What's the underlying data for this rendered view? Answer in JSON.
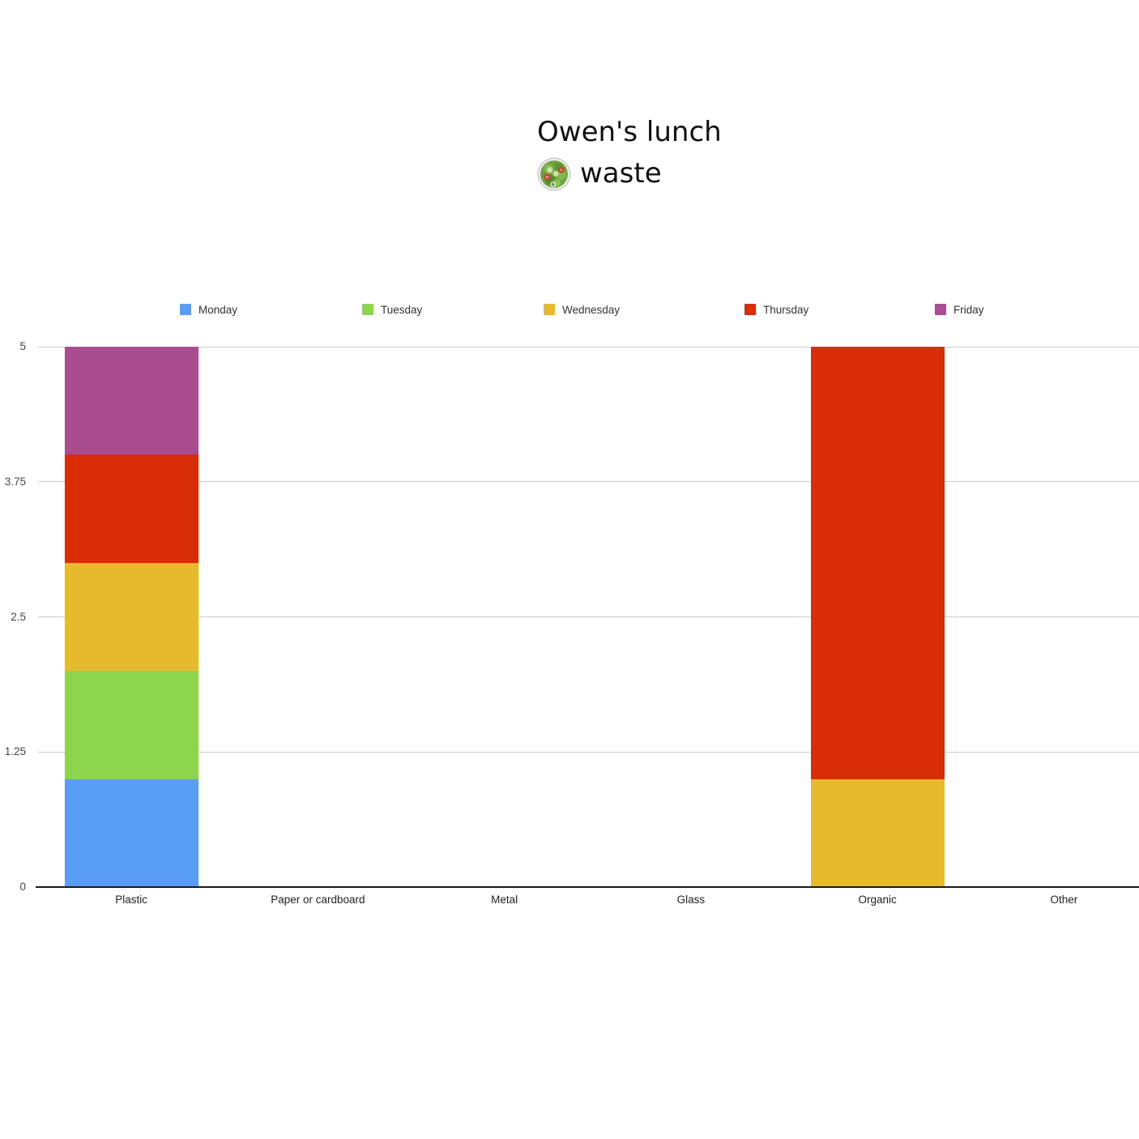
{
  "title": {
    "line1": "Owen's lunch",
    "line2": "waste",
    "emoji_char": "🥗",
    "emoji_name": "green-salad"
  },
  "chart_data": {
    "type": "bar",
    "stacked": true,
    "title": "Owen's lunch 🥗 waste",
    "categories": [
      "Plastic",
      "Paper or cardboard",
      "Metal",
      "Glass",
      "Organic",
      "Other"
    ],
    "series": [
      {
        "name": "Monday",
        "color": "#5A9DF7",
        "values": [
          1,
          0,
          0,
          0,
          0,
          0
        ]
      },
      {
        "name": "Tuesday",
        "color": "#8CD54C",
        "values": [
          1,
          0,
          0,
          0,
          0,
          0
        ]
      },
      {
        "name": "Wednesday",
        "color": "#E7B92C",
        "values": [
          1,
          0,
          0,
          0,
          1,
          0
        ]
      },
      {
        "name": "Thursday",
        "color": "#DA2C06",
        "values": [
          1,
          0,
          0,
          0,
          4,
          0
        ]
      },
      {
        "name": "Friday",
        "color": "#AA4D90",
        "values": [
          1,
          0,
          0,
          0,
          0,
          0
        ]
      }
    ],
    "ylim": [
      0,
      5
    ],
    "yticks": [
      0,
      1.25,
      2.5,
      3.75,
      5
    ],
    "ytick_labels": [
      "0",
      "1.25",
      "2.5",
      "3.75",
      "5"
    ],
    "xlabel": "",
    "ylabel": "",
    "grid": true,
    "gridline_color": "#cccccc",
    "axis_color": "#1a1a1a",
    "legend_position": "top"
  }
}
